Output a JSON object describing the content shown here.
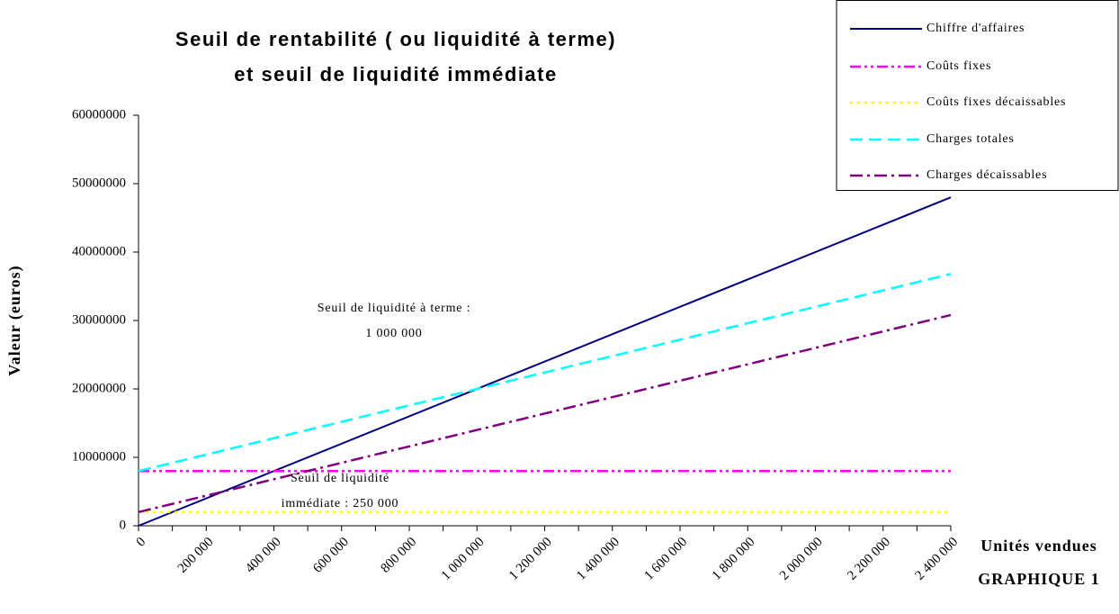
{
  "chart_data": {
    "type": "line",
    "title": [
      "Seuil de rentabilité ( ou liquidité à terme)",
      "et seuil de liquidité immédiate"
    ],
    "x_label": [
      "Unités vendues",
      "GRAPHIQUE 1"
    ],
    "y_label": "Valeur (euros)",
    "x": [
      0,
      2400000
    ],
    "series": [
      {
        "name": "Chiffre d'affaires",
        "color": "#000080",
        "style": "solid",
        "values": [
          0,
          48000000
        ]
      },
      {
        "name": "Coûts fixes",
        "color": "#ff00ff",
        "style": "dashdotdot",
        "values": [
          8000000,
          8000000
        ]
      },
      {
        "name": "Coûts fixes décaissables",
        "color": "#ffff00",
        "style": "dotted",
        "values": [
          2000000,
          2000000
        ]
      },
      {
        "name": "Charges totales",
        "color": "#00ffff",
        "style": "dashed",
        "values": [
          8000000,
          36800000
        ]
      },
      {
        "name": "Charges décaissables",
        "color": "#800080",
        "style": "dashdot",
        "values": [
          2000000,
          30800000
        ]
      }
    ],
    "annotations": [
      "Seuil de liquidité à terme :",
      "1 000 000",
      "Seuil de liquidité",
      "immédiate : 250 000"
    ],
    "xlim": [
      0,
      2400000
    ],
    "xticks": [
      0,
      {
        "value": 200000,
        "label": "200 000"
      },
      {
        "value": 400000,
        "label": "400 000"
      },
      {
        "value": 600000,
        "label": "600 000"
      },
      {
        "value": 800000,
        "label": "800 000"
      },
      {
        "value": 1000000,
        "label": "1 000 000"
      },
      {
        "value": 1200000,
        "label": "1 200 000"
      },
      {
        "value": 1400000,
        "label": "1 400 000"
      },
      {
        "value": 1600000,
        "label": "1 600 000"
      },
      {
        "value": 1800000,
        "label": "1 800 000"
      },
      {
        "value": 2000000,
        "label": "2 000 000"
      },
      {
        "value": 2200000,
        "label": "2 200 000"
      },
      {
        "value": 2400000,
        "label": "2 400 000"
      }
    ],
    "xminorticks": [
      100000,
      300000,
      500000,
      700000,
      900000,
      1100000,
      1300000,
      1500000,
      1700000,
      1900000,
      2100000,
      2300000
    ],
    "ylim": [
      0,
      60000000
    ],
    "yticks": [
      0,
      10000000,
      20000000,
      30000000,
      40000000,
      50000000,
      60000000
    ],
    "grid": false,
    "legend": "top-right"
  }
}
